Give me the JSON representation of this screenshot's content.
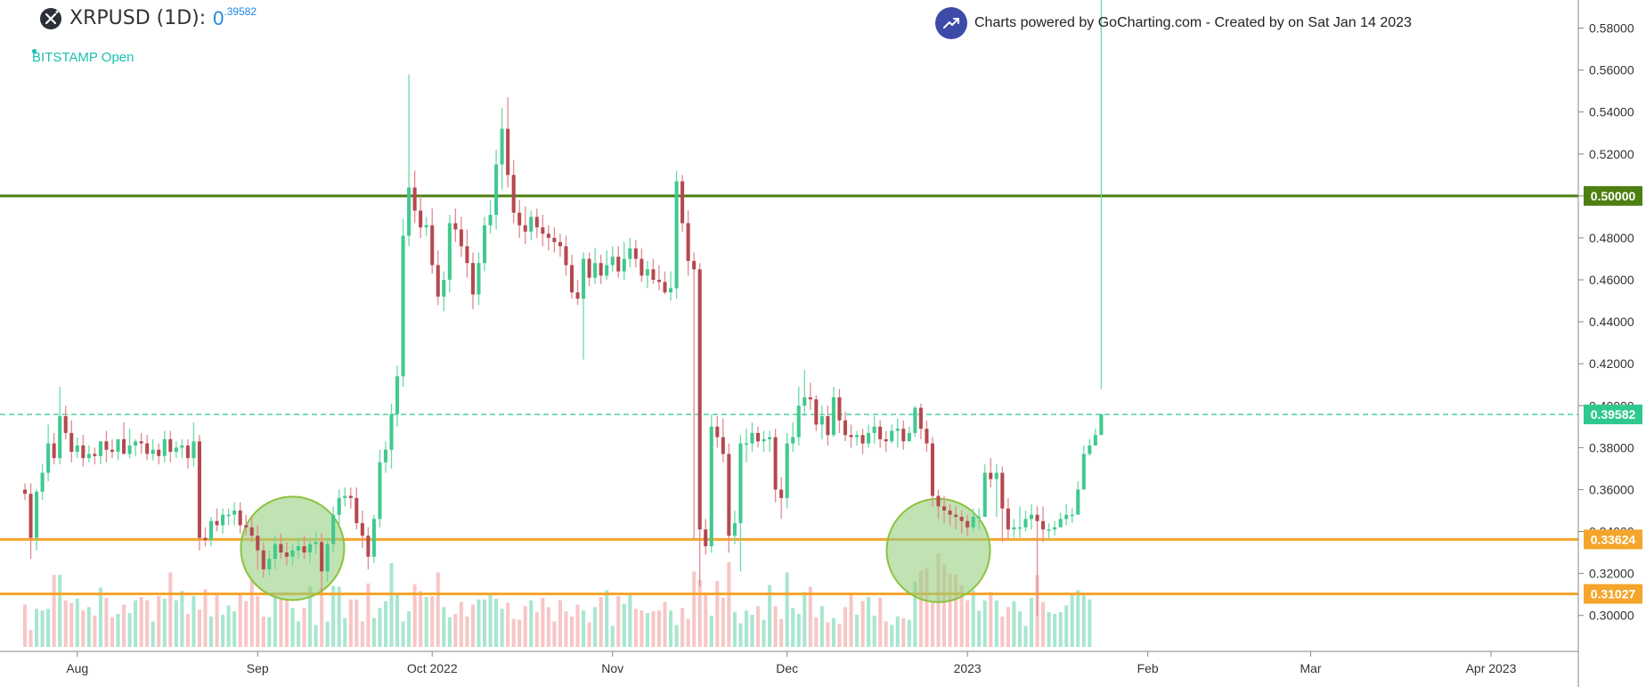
{
  "header": {
    "symbol_label": "XRPUSD (1D):",
    "price_main": "0",
    "price_sup": ".39582",
    "exchange_label": "BITSTAMP Open",
    "credit_text": "Charts powered by GoCharting.com - Created by  on Sat Jan 14 2023"
  },
  "colors": {
    "up": "#40c990",
    "down": "#b4494f",
    "up_wick": "#6cd8a8",
    "down_wick": "#e08a8e",
    "vol_up": "#a8e6cf",
    "vol_down": "#f7c6c6",
    "green_line": "#4e7f12",
    "orange_line": "#f5a52b",
    "current_price": "#2ec98e",
    "circle_fill": "#98cf7e",
    "circle_stroke": "#8cc23f"
  },
  "chart_data": {
    "type": "candlestick",
    "symbol": "XRPUSD",
    "interval": "1D",
    "exchange": "BITSTAMP",
    "start_date": "2022-07-23",
    "y_range": [
      0.285,
      0.59
    ],
    "y_ticks": [
      "0.30000",
      "0.32000",
      "0.34000",
      "0.36000",
      "0.38000",
      "0.40000",
      "0.42000",
      "0.44000",
      "0.46000",
      "0.48000",
      "0.50000",
      "0.52000",
      "0.54000",
      "0.56000",
      "0.58000"
    ],
    "x_ticks": [
      {
        "date": "2022-08-01",
        "label": "Aug"
      },
      {
        "date": "2022-09-01",
        "label": "Sep"
      },
      {
        "date": "2022-10-01",
        "label": "Oct 2022"
      },
      {
        "date": "2022-11-01",
        "label": "Nov"
      },
      {
        "date": "2022-12-01",
        "label": "Dec"
      },
      {
        "date": "2023-01-01",
        "label": "2023"
      },
      {
        "date": "2023-02-01",
        "label": "Feb"
      },
      {
        "date": "2023-03-01",
        "label": "Mar"
      },
      {
        "date": "2023-04-01",
        "label": "Apr 2023"
      }
    ],
    "x_end_date": "2023-04-16",
    "current_price": {
      "value": 0.39582,
      "label": "0.39582"
    },
    "horizontal_levels": [
      {
        "value": 0.5,
        "label": "0.50000",
        "color": "#4e7f12"
      },
      {
        "value": 0.33624,
        "label": "0.33624",
        "color": "#f5a52b"
      },
      {
        "value": 0.31027,
        "label": "0.31027",
        "color": "#f5a52b"
      }
    ],
    "circles": [
      {
        "date": "2022-09-07",
        "price": 0.332
      },
      {
        "date": "2022-12-27",
        "price": 0.331
      }
    ],
    "closes": [
      0.358,
      0.337,
      0.359,
      0.368,
      0.382,
      0.375,
      0.395,
      0.387,
      0.378,
      0.381,
      0.375,
      0.377,
      0.376,
      0.383,
      0.379,
      0.378,
      0.384,
      0.377,
      0.381,
      0.383,
      0.382,
      0.377,
      0.379,
      0.376,
      0.384,
      0.378,
      0.38,
      0.381,
      0.375,
      0.383,
      0.337,
      0.336,
      0.345,
      0.343,
      0.348,
      0.348,
      0.35,
      0.343,
      0.342,
      0.338,
      0.331,
      0.322,
      0.327,
      0.334,
      0.33,
      0.328,
      0.331,
      0.333,
      0.33,
      0.334,
      0.335,
      0.321,
      0.334,
      0.348,
      0.356,
      0.357,
      0.356,
      0.344,
      0.338,
      0.328,
      0.346,
      0.373,
      0.379,
      0.396,
      0.414,
      0.481,
      0.504,
      0.493,
      0.485,
      0.486,
      0.467,
      0.452,
      0.46,
      0.487,
      0.484,
      0.476,
      0.468,
      0.453,
      0.468,
      0.486,
      0.491,
      0.515,
      0.532,
      0.51,
      0.492,
      0.486,
      0.483,
      0.49,
      0.485,
      0.482,
      0.48,
      0.478,
      0.476,
      0.467,
      0.454,
      0.451,
      0.47,
      0.461,
      0.468,
      0.462,
      0.467,
      0.471,
      0.464,
      0.47,
      0.475,
      0.47,
      0.462,
      0.465,
      0.46,
      0.459,
      0.454,
      0.456,
      0.507,
      0.487,
      0.469,
      0.465,
      0.341,
      0.333,
      0.39,
      0.385,
      0.377,
      0.338,
      0.344,
      0.382,
      0.382,
      0.387,
      0.383,
      0.384,
      0.385,
      0.36,
      0.356,
      0.382,
      0.385,
      0.4,
      0.404,
      0.403,
      0.391,
      0.395,
      0.386,
      0.404,
      0.393,
      0.386,
      0.385,
      0.386,
      0.382,
      0.387,
      0.39,
      0.384,
      0.383,
      0.388,
      0.389,
      0.383,
      0.387,
      0.399,
      0.389,
      0.382,
      0.357,
      0.352,
      0.35,
      0.348,
      0.347,
      0.345,
      0.342,
      0.347,
      0.347,
      0.368,
      0.365,
      0.368,
      0.351,
      0.341,
      0.342,
      0.342,
      0.346,
      0.348,
      0.345,
      0.341,
      0.341,
      0.342,
      0.346,
      0.348,
      0.348,
      0.36,
      0.377,
      0.381,
      0.386,
      0.396
    ],
    "opens": [
      0.36,
      0.358,
      0.337,
      0.359,
      0.368,
      0.382,
      0.375,
      0.395,
      0.387,
      0.378,
      0.381,
      0.375,
      0.377,
      0.376,
      0.383,
      0.379,
      0.378,
      0.384,
      0.377,
      0.381,
      0.383,
      0.382,
      0.377,
      0.379,
      0.376,
      0.384,
      0.378,
      0.38,
      0.381,
      0.375,
      0.383,
      0.337,
      0.336,
      0.345,
      0.343,
      0.348,
      0.348,
      0.35,
      0.343,
      0.342,
      0.338,
      0.331,
      0.322,
      0.327,
      0.334,
      0.33,
      0.328,
      0.331,
      0.333,
      0.33,
      0.334,
      0.335,
      0.321,
      0.334,
      0.348,
      0.356,
      0.357,
      0.356,
      0.344,
      0.338,
      0.328,
      0.346,
      0.373,
      0.379,
      0.396,
      0.414,
      0.481,
      0.504,
      0.493,
      0.485,
      0.486,
      0.467,
      0.452,
      0.46,
      0.487,
      0.484,
      0.476,
      0.468,
      0.453,
      0.468,
      0.486,
      0.491,
      0.515,
      0.532,
      0.51,
      0.492,
      0.486,
      0.483,
      0.49,
      0.485,
      0.482,
      0.48,
      0.478,
      0.476,
      0.467,
      0.454,
      0.451,
      0.47,
      0.461,
      0.468,
      0.462,
      0.467,
      0.471,
      0.464,
      0.47,
      0.475,
      0.47,
      0.462,
      0.465,
      0.46,
      0.459,
      0.454,
      0.456,
      0.507,
      0.487,
      0.469,
      0.465,
      0.341,
      0.333,
      0.39,
      0.385,
      0.377,
      0.338,
      0.344,
      0.382,
      0.382,
      0.387,
      0.383,
      0.384,
      0.385,
      0.36,
      0.356,
      0.382,
      0.385,
      0.4,
      0.404,
      0.403,
      0.391,
      0.395,
      0.386,
      0.404,
      0.393,
      0.386,
      0.385,
      0.386,
      0.382,
      0.387,
      0.39,
      0.384,
      0.383,
      0.388,
      0.389,
      0.383,
      0.387,
      0.399,
      0.389,
      0.382,
      0.357,
      0.352,
      0.35,
      0.348,
      0.347,
      0.345,
      0.342,
      0.347,
      0.347,
      0.368,
      0.365,
      0.368,
      0.351,
      0.341,
      0.342,
      0.342,
      0.346,
      0.348,
      0.345,
      0.341,
      0.341,
      0.342,
      0.346,
      0.348,
      0.348,
      0.36,
      0.377,
      0.381,
      0.386
    ],
    "highs": [
      0.363,
      0.363,
      0.36,
      0.372,
      0.391,
      0.387,
      0.409,
      0.4,
      0.393,
      0.385,
      0.386,
      0.381,
      0.38,
      0.38,
      0.388,
      0.384,
      0.382,
      0.392,
      0.389,
      0.384,
      0.387,
      0.386,
      0.384,
      0.382,
      0.388,
      0.388,
      0.383,
      0.384,
      0.384,
      0.392,
      0.386,
      0.342,
      0.347,
      0.351,
      0.351,
      0.351,
      0.354,
      0.354,
      0.348,
      0.347,
      0.343,
      0.335,
      0.331,
      0.338,
      0.339,
      0.335,
      0.334,
      0.337,
      0.338,
      0.337,
      0.34,
      0.339,
      0.337,
      0.352,
      0.36,
      0.361,
      0.361,
      0.361,
      0.35,
      0.342,
      0.348,
      0.379,
      0.383,
      0.401,
      0.419,
      0.489,
      0.558,
      0.512,
      0.5,
      0.49,
      0.494,
      0.474,
      0.464,
      0.491,
      0.494,
      0.49,
      0.484,
      0.473,
      0.473,
      0.49,
      0.498,
      0.522,
      0.542,
      0.547,
      0.517,
      0.498,
      0.495,
      0.493,
      0.494,
      0.491,
      0.486,
      0.485,
      0.482,
      0.481,
      0.472,
      0.46,
      0.473,
      0.473,
      0.475,
      0.472,
      0.474,
      0.476,
      0.476,
      0.478,
      0.48,
      0.479,
      0.475,
      0.469,
      0.47,
      0.467,
      0.464,
      0.464,
      0.512,
      0.51,
      0.493,
      0.473,
      0.468,
      0.346,
      0.396,
      0.395,
      0.394,
      0.382,
      0.35,
      0.386,
      0.389,
      0.392,
      0.39,
      0.388,
      0.388,
      0.389,
      0.366,
      0.387,
      0.392,
      0.409,
      0.417,
      0.411,
      0.405,
      0.4,
      0.4,
      0.409,
      0.408,
      0.397,
      0.391,
      0.388,
      0.389,
      0.391,
      0.395,
      0.393,
      0.388,
      0.391,
      0.394,
      0.393,
      0.39,
      0.4,
      0.401,
      0.393,
      0.385,
      0.36,
      0.357,
      0.353,
      0.352,
      0.35,
      0.348,
      0.351,
      0.351,
      0.372,
      0.375,
      0.372,
      0.371,
      0.356,
      0.346,
      0.352,
      0.35,
      0.353,
      0.352,
      0.352,
      0.344,
      0.345,
      0.349,
      0.353,
      0.351,
      0.364,
      0.381,
      0.384,
      0.389,
      0.408
    ],
    "lows": [
      0.355,
      0.327,
      0.331,
      0.355,
      0.364,
      0.372,
      0.372,
      0.384,
      0.373,
      0.375,
      0.371,
      0.373,
      0.372,
      0.372,
      0.373,
      0.375,
      0.374,
      0.38,
      0.375,
      0.376,
      0.377,
      0.374,
      0.374,
      0.372,
      0.373,
      0.373,
      0.375,
      0.375,
      0.37,
      0.371,
      0.331,
      0.333,
      0.333,
      0.34,
      0.339,
      0.343,
      0.343,
      0.339,
      0.338,
      0.335,
      0.322,
      0.318,
      0.319,
      0.322,
      0.327,
      0.324,
      0.324,
      0.327,
      0.327,
      0.325,
      0.329,
      0.312,
      0.316,
      0.33,
      0.343,
      0.352,
      0.351,
      0.341,
      0.332,
      0.322,
      0.325,
      0.342,
      0.368,
      0.37,
      0.39,
      0.409,
      0.476,
      0.487,
      0.48,
      0.481,
      0.463,
      0.448,
      0.445,
      0.454,
      0.478,
      0.471,
      0.461,
      0.446,
      0.448,
      0.464,
      0.482,
      0.484,
      0.503,
      0.504,
      0.487,
      0.48,
      0.477,
      0.479,
      0.48,
      0.476,
      0.474,
      0.473,
      0.471,
      0.462,
      0.451,
      0.448,
      0.422,
      0.457,
      0.458,
      0.458,
      0.46,
      0.464,
      0.461,
      0.46,
      0.466,
      0.466,
      0.459,
      0.456,
      0.458,
      0.455,
      0.453,
      0.45,
      0.451,
      0.483,
      0.462,
      0.336,
      0.314,
      0.329,
      0.33,
      0.38,
      0.373,
      0.33,
      0.334,
      0.321,
      0.373,
      0.378,
      0.38,
      0.378,
      0.378,
      0.354,
      0.346,
      0.351,
      0.378,
      0.381,
      0.395,
      0.398,
      0.388,
      0.384,
      0.381,
      0.385,
      0.387,
      0.383,
      0.38,
      0.381,
      0.377,
      0.38,
      0.382,
      0.38,
      0.378,
      0.382,
      0.38,
      0.379,
      0.383,
      0.385,
      0.384,
      0.378,
      0.352,
      0.346,
      0.344,
      0.343,
      0.341,
      0.339,
      0.338,
      0.34,
      0.341,
      0.362,
      0.361,
      0.347,
      0.335,
      0.336,
      0.337,
      0.337,
      0.34,
      0.341,
      0.3,
      0.335,
      0.336,
      0.338,
      0.344,
      0.343,
      0.344,
      0.358,
      0.372,
      0.376,
      0.382
    ],
    "volumes": [
      0.5,
      0.2,
      0.45,
      0.43,
      0.45,
      0.85,
      0.85,
      0.55,
      0.52,
      0.57,
      0.43,
      0.47,
      0.37,
      0.7,
      0.58,
      0.35,
      0.39,
      0.5,
      0.4,
      0.55,
      0.59,
      0.55,
      0.3,
      0.6,
      0.57,
      0.88,
      0.55,
      0.66,
      0.39,
      0.6,
      0.44,
      0.68,
      0.36,
      0.63,
      0.38,
      0.49,
      0.42,
      0.64,
      0.54,
      0.79,
      0.6,
      0.36,
      0.35,
      0.6,
      0.56,
      0.57,
      0.46,
      0.3,
      0.46,
      0.72,
      0.26,
      0.7,
      0.3,
      0.72,
      0.71,
      0.34,
      0.56,
      0.56,
      0.3,
      0.75,
      0.34,
      0.46,
      0.54,
      0.99,
      0.61,
      0.3,
      0.42,
      0.74,
      0.66,
      0.59,
      0.6,
      0.88,
      0.47,
      0.35,
      0.39,
      0.53,
      0.36,
      0.5,
      0.56,
      0.56,
      0.64,
      0.57,
      0.45,
      0.52,
      0.33,
      0.32,
      0.48,
      0.55,
      0.41,
      0.58,
      0.47,
      0.3,
      0.55,
      0.42,
      0.36,
      0.5,
      0.43,
      0.29,
      0.47,
      0.59,
      0.67,
      0.25,
      0.6,
      0.51,
      0.64,
      0.45,
      0.43,
      0.4,
      0.42,
      0.43,
      0.53,
      0.43,
      0.26,
      0.46,
      0.33,
      0.89,
      0.79,
      0.62,
      0.37,
      0.78,
      0.58,
      1.0,
      0.41,
      0.28,
      0.43,
      0.38,
      0.48,
      0.32,
      0.73,
      0.48,
      0.33,
      0.88,
      0.46,
      0.39,
      0.65,
      0.71,
      0.35,
      0.48,
      0.29,
      0.34,
      0.27,
      0.47,
      0.64,
      0.38,
      0.54,
      0.59,
      0.37,
      0.58,
      0.3,
      0.26,
      0.36,
      0.34,
      0.32,
      0.77,
      0.9,
      0.93,
      0.53,
      1.1,
      0.97,
      0.86,
      0.85,
      0.73,
      0.55,
      0.67,
      0.43,
      0.55,
      0.65,
      0.55,
      0.36,
      0.47,
      0.54,
      0.42,
      0.25,
      0.58,
      0.85,
      0.53,
      0.41,
      0.39,
      0.41,
      0.49,
      0.64,
      0.67,
      0.61,
      0.56
    ]
  }
}
